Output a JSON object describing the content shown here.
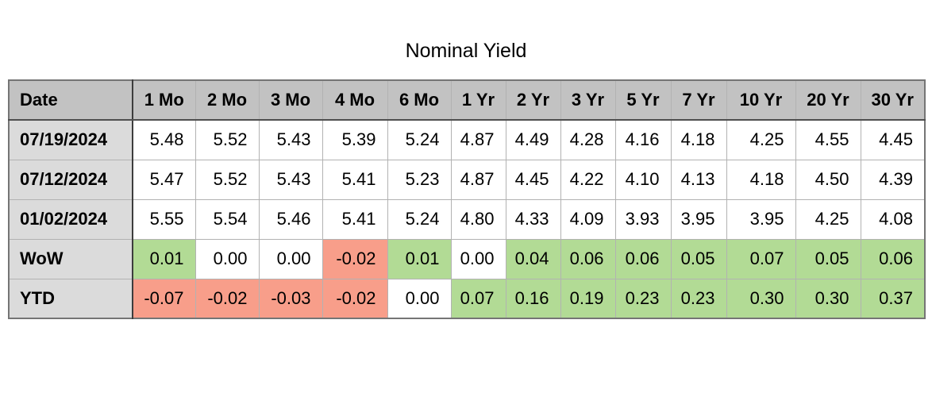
{
  "title": "Nominal Yield",
  "chart_data": {
    "type": "table",
    "title": "Nominal Yield",
    "columns": [
      "Date",
      "1 Mo",
      "2 Mo",
      "3 Mo",
      "4 Mo",
      "6 Mo",
      "1 Yr",
      "2 Yr",
      "3 Yr",
      "5 Yr",
      "7 Yr",
      "10 Yr",
      "20 Yr",
      "30 Yr"
    ],
    "rows": [
      {
        "label": "07/19/2024",
        "values": [
          "5.48",
          "5.52",
          "5.43",
          "5.39",
          "5.24",
          "4.87",
          "4.49",
          "4.28",
          "4.16",
          "4.18",
          "4.25",
          "4.55",
          "4.45"
        ],
        "highlights": [
          "none",
          "none",
          "none",
          "none",
          "none",
          "none",
          "none",
          "none",
          "none",
          "none",
          "none",
          "none",
          "none"
        ]
      },
      {
        "label": "07/12/2024",
        "values": [
          "5.47",
          "5.52",
          "5.43",
          "5.41",
          "5.23",
          "4.87",
          "4.45",
          "4.22",
          "4.10",
          "4.13",
          "4.18",
          "4.50",
          "4.39"
        ],
        "highlights": [
          "none",
          "none",
          "none",
          "none",
          "none",
          "none",
          "none",
          "none",
          "none",
          "none",
          "none",
          "none",
          "none"
        ]
      },
      {
        "label": "01/02/2024",
        "values": [
          "5.55",
          "5.54",
          "5.46",
          "5.41",
          "5.24",
          "4.80",
          "4.33",
          "4.09",
          "3.93",
          "3.95",
          "3.95",
          "4.25",
          "4.08"
        ],
        "highlights": [
          "none",
          "none",
          "none",
          "none",
          "none",
          "none",
          "none",
          "none",
          "none",
          "none",
          "none",
          "none",
          "none"
        ]
      },
      {
        "label": "WoW",
        "values": [
          "0.01",
          "0.00",
          "0.00",
          "-0.02",
          "0.01",
          "0.00",
          "0.04",
          "0.06",
          "0.06",
          "0.05",
          "0.07",
          "0.05",
          "0.06"
        ],
        "highlights": [
          "positive",
          "none",
          "none",
          "negative",
          "positive",
          "none",
          "positive",
          "positive",
          "positive",
          "positive",
          "positive",
          "positive",
          "positive"
        ]
      },
      {
        "label": "YTD",
        "values": [
          "-0.07",
          "-0.02",
          "-0.03",
          "-0.02",
          "0.00",
          "0.07",
          "0.16",
          "0.19",
          "0.23",
          "0.23",
          "0.30",
          "0.30",
          "0.37"
        ],
        "highlights": [
          "negative",
          "negative",
          "negative",
          "negative",
          "none",
          "positive",
          "positive",
          "positive",
          "positive",
          "positive",
          "positive",
          "positive",
          "positive"
        ]
      }
    ]
  },
  "colors": {
    "positive_bg": "#b2db95",
    "negative_bg": "#f89e8a",
    "header_bg": "#c2c2c2",
    "label_bg": "#dbdbdb",
    "grid_line": "#b2b2b2",
    "outer_border": "#757575",
    "header_divider": "#4f4f4f",
    "label_divider": "#3d3d3d"
  }
}
